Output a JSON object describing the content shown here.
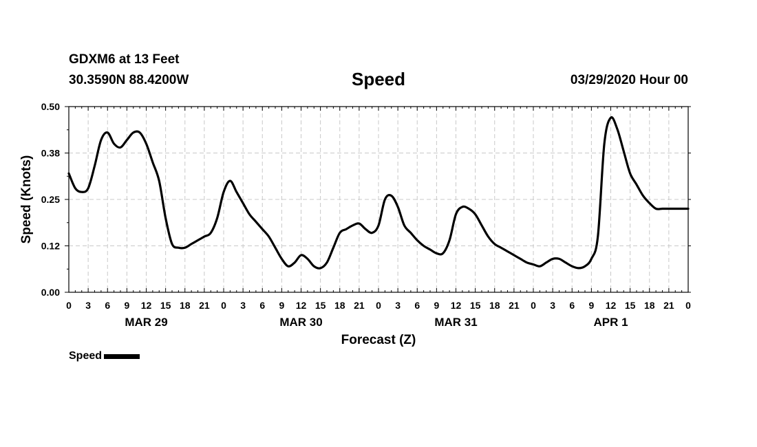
{
  "header": {
    "station": "GDXM6 at 13 Feet",
    "coords": "30.3590N 88.4200W",
    "title": "Speed",
    "datetime": "03/29/2020 Hour 00"
  },
  "colors": {
    "line": "#000000",
    "grid": "#c8c8c8",
    "frame": "#000000"
  },
  "legend": {
    "label": "Speed"
  },
  "chart_data": {
    "type": "line",
    "title": "Speed",
    "xlabel": "Forecast (Z)",
    "ylabel": "Speed (Knots)",
    "ylim": [
      0,
      0.5
    ],
    "xlim": [
      0,
      96
    ],
    "yticks": [
      0.0,
      0.125,
      0.25,
      0.375,
      0.5
    ],
    "ytick_labels": [
      "0.00",
      "0.12",
      "0.25",
      "0.38",
      "0.50"
    ],
    "xticks": [
      0,
      3,
      6,
      9,
      12,
      15,
      18,
      21,
      24,
      27,
      30,
      33,
      36,
      39,
      42,
      45,
      48,
      51,
      54,
      57,
      60,
      63,
      66,
      69,
      72,
      75,
      78,
      81,
      84,
      87,
      90,
      93,
      96
    ],
    "xtick_labels": [
      "0",
      "3",
      "6",
      "9",
      "12",
      "15",
      "18",
      "21",
      "0",
      "3",
      "6",
      "9",
      "12",
      "15",
      "18",
      "21",
      "0",
      "3",
      "6",
      "9",
      "12",
      "15",
      "18",
      "21",
      "0",
      "3",
      "6",
      "9",
      "12",
      "15",
      "18",
      "21",
      "0"
    ],
    "day_labels": [
      {
        "label": "MAR 29",
        "x": 12
      },
      {
        "label": "MAR 30",
        "x": 36
      },
      {
        "label": "MAR 31",
        "x": 60
      },
      {
        "label": "APR 1",
        "x": 84
      }
    ],
    "grid": true,
    "series": [
      {
        "name": "Speed",
        "x": [
          0,
          1,
          2,
          3,
          4,
          5,
          6,
          7,
          8,
          9,
          10,
          11,
          12,
          13,
          14,
          15,
          16,
          17,
          18,
          19,
          20,
          21,
          22,
          23,
          24,
          25,
          26,
          27,
          28,
          29,
          30,
          31,
          32,
          33,
          34,
          35,
          36,
          37,
          38,
          39,
          40,
          41,
          42,
          43,
          44,
          45,
          46,
          47,
          48,
          49,
          50,
          51,
          52,
          53,
          54,
          55,
          56,
          57,
          58,
          59,
          60,
          61,
          62,
          63,
          64,
          65,
          66,
          67,
          68,
          69,
          70,
          71,
          72,
          73,
          74,
          75,
          76,
          77,
          78,
          79,
          80,
          81,
          82,
          83,
          84,
          85,
          86,
          87,
          88,
          89,
          90,
          91,
          92,
          93,
          94,
          95,
          96
        ],
        "values": [
          0.32,
          0.28,
          0.27,
          0.28,
          0.34,
          0.41,
          0.43,
          0.4,
          0.39,
          0.41,
          0.43,
          0.43,
          0.4,
          0.35,
          0.3,
          0.2,
          0.13,
          0.12,
          0.12,
          0.13,
          0.14,
          0.15,
          0.16,
          0.2,
          0.27,
          0.3,
          0.27,
          0.24,
          0.21,
          0.19,
          0.17,
          0.15,
          0.12,
          0.09,
          0.07,
          0.08,
          0.1,
          0.09,
          0.07,
          0.065,
          0.08,
          0.12,
          0.16,
          0.17,
          0.18,
          0.185,
          0.17,
          0.16,
          0.18,
          0.25,
          0.26,
          0.23,
          0.18,
          0.16,
          0.14,
          0.125,
          0.115,
          0.105,
          0.105,
          0.14,
          0.21,
          0.23,
          0.225,
          0.21,
          0.18,
          0.15,
          0.13,
          0.12,
          0.11,
          0.1,
          0.09,
          0.08,
          0.075,
          0.07,
          0.08,
          0.09,
          0.09,
          0.08,
          0.07,
          0.065,
          0.07,
          0.09,
          0.15,
          0.4,
          0.47,
          0.44,
          0.38,
          0.32,
          0.29,
          0.26,
          0.24,
          0.225,
          0.225,
          0.225,
          0.225,
          0.225,
          0.225
        ]
      }
    ]
  }
}
